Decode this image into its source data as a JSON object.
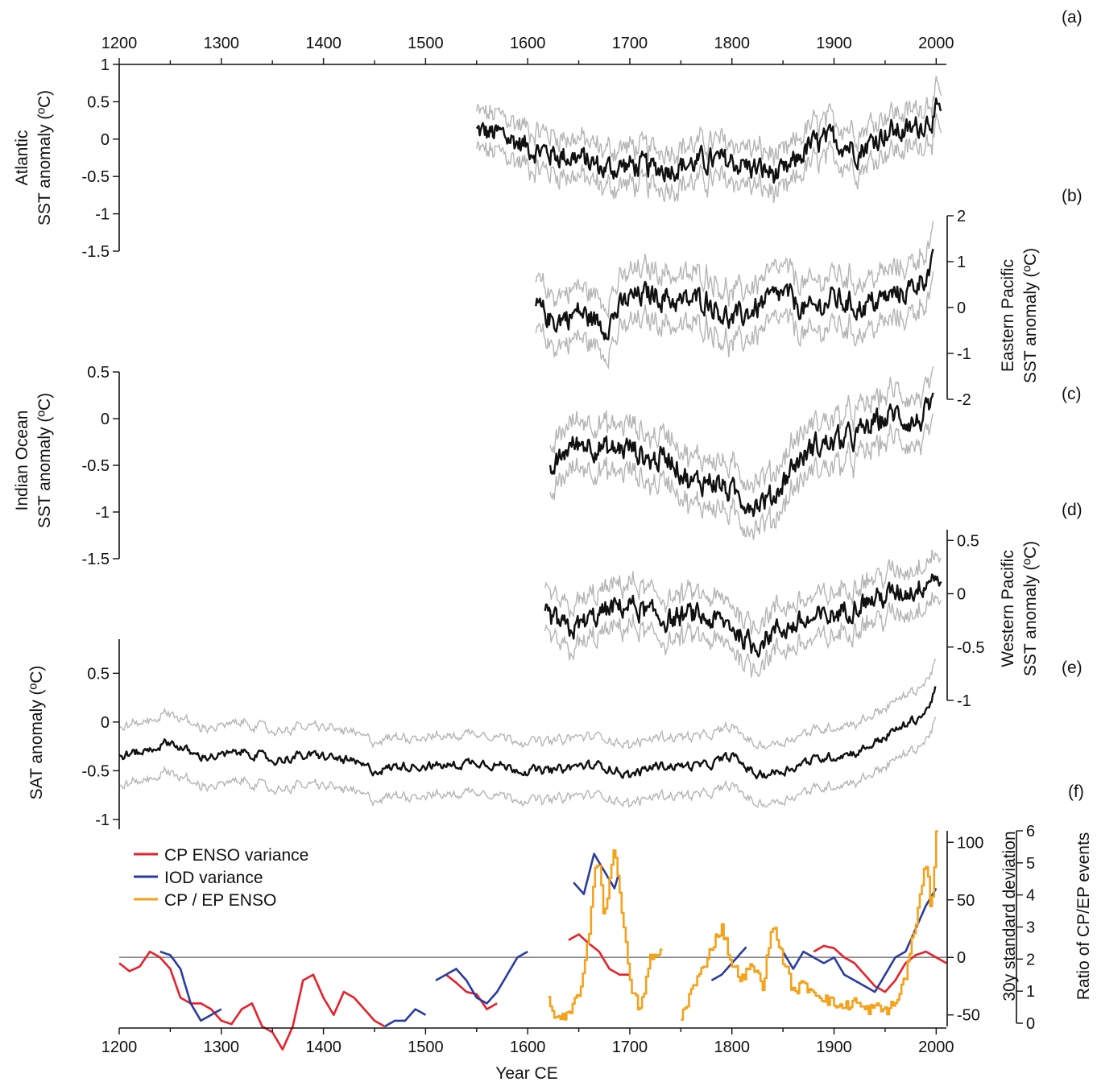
{
  "chart_data": {
    "type": "line",
    "xaxis": {
      "label": "Year CE",
      "range": [
        1200,
        2010
      ],
      "ticks": [
        1200,
        1300,
        1400,
        1500,
        1600,
        1700,
        1800,
        1900,
        2000
      ]
    },
    "panels": [
      {
        "id": "a",
        "label": "(a)",
        "ylabel": [
          "Atlantic",
          "SST anomaly (ºC)"
        ],
        "axis_side": "left",
        "ylim": [
          -1.5,
          1
        ],
        "yticks": [
          "1",
          "0.5",
          "0",
          "-0.5",
          "-1",
          "-1.5"
        ],
        "ytick_values": [
          1,
          0.5,
          0,
          -0.5,
          -1,
          -1.5
        ],
        "series": [
          {
            "style": "black-with-grey-envelope",
            "x_start": 1550,
            "x_end": 2005,
            "x": [
              1550,
              1575,
              1600,
              1625,
              1650,
              1675,
              1700,
              1725,
              1750,
              1775,
              1800,
              1825,
              1850,
              1875,
              1900,
              1925,
              1950,
              1975,
              2000,
              2005
            ],
            "y": [
              0.1,
              0.05,
              -0.1,
              -0.2,
              -0.25,
              -0.4,
              -0.35,
              -0.4,
              -0.35,
              -0.3,
              -0.3,
              -0.4,
              -0.5,
              -0.1,
              0.0,
              -0.15,
              0.1,
              0.1,
              0.35,
              0.3
            ],
            "envelope": 0.25
          }
        ]
      },
      {
        "id": "b",
        "label": "(b)",
        "ylabel": [
          "Eastern Pacific",
          "SST anomaly (ºC)"
        ],
        "axis_side": "right",
        "ylim": [
          -2,
          2
        ],
        "yticks": [
          "2",
          "1",
          "0",
          "-1",
          "-2"
        ],
        "ytick_values": [
          2,
          1,
          0,
          -1,
          -2
        ],
        "series": [
          {
            "style": "black-with-grey-envelope",
            "x_start": 1608,
            "x_end": 1997,
            "x": [
              1608,
              1625,
              1650,
              1675,
              1700,
              1725,
              1750,
              1775,
              1800,
              1825,
              1850,
              1875,
              1900,
              1925,
              1950,
              1975,
              1997
            ],
            "y": [
              0.0,
              -0.3,
              -0.1,
              -0.4,
              0.2,
              0.3,
              0.1,
              0.2,
              -0.3,
              0.0,
              0.3,
              -0.1,
              0.2,
              0.0,
              0.2,
              0.4,
              0.9
            ],
            "envelope": 0.55
          }
        ]
      },
      {
        "id": "c",
        "label": "(c)",
        "ylabel": [
          "Indian Ocean",
          "SST anomaly (ºC)"
        ],
        "axis_side": "left",
        "ylim": [
          -1.5,
          0.5
        ],
        "yticks": [
          "0.5",
          "0",
          "-0.5",
          "-1",
          "-1.5"
        ],
        "ytick_values": [
          0.5,
          0,
          -0.5,
          -1,
          -1.5
        ],
        "series": [
          {
            "style": "black-with-grey-envelope",
            "x_start": 1622,
            "x_end": 1997,
            "x": [
              1622,
              1640,
              1660,
              1680,
              1700,
              1720,
              1740,
              1760,
              1780,
              1800,
              1820,
              1840,
              1860,
              1880,
              1900,
              1920,
              1940,
              1960,
              1980,
              1997
            ],
            "y": [
              -0.6,
              -0.3,
              -0.25,
              -0.35,
              -0.3,
              -0.45,
              -0.4,
              -0.7,
              -0.65,
              -0.8,
              -0.9,
              -0.85,
              -0.5,
              -0.3,
              -0.25,
              -0.2,
              -0.05,
              0.05,
              -0.05,
              0.1
            ],
            "envelope": 0.25
          }
        ]
      },
      {
        "id": "d",
        "label": "(d)",
        "ylabel": [
          "Western Pacific",
          "SST anomaly (ºC)"
        ],
        "axis_side": "right",
        "ylim": [
          -1,
          0.6
        ],
        "yticks": [
          "0.5",
          "0",
          "-0.5",
          "-1"
        ],
        "ytick_values": [
          0.5,
          0,
          -0.5,
          -1
        ],
        "series": [
          {
            "style": "black-with-grey-envelope",
            "x_start": 1617,
            "x_end": 2005,
            "x": [
              1617,
              1640,
              1660,
              1680,
              1700,
              1720,
              1740,
              1760,
              1780,
              1800,
              1820,
              1840,
              1860,
              1880,
              1900,
              1920,
              1940,
              1960,
              1980,
              2000,
              2005
            ],
            "y": [
              -0.2,
              -0.35,
              -0.25,
              -0.15,
              -0.1,
              -0.2,
              -0.25,
              -0.2,
              -0.25,
              -0.3,
              -0.5,
              -0.35,
              -0.3,
              -0.25,
              -0.2,
              -0.1,
              -0.05,
              0.0,
              0.05,
              0.2,
              0.05
            ],
            "envelope": 0.2
          }
        ]
      },
      {
        "id": "e",
        "label": "(e)",
        "ylabel": [
          "SAT anomaly (ºC)"
        ],
        "axis_side": "left",
        "ylim": [
          -1.1,
          0.85
        ],
        "yticks": [
          "0.5",
          "0",
          "-0.5",
          "-1"
        ],
        "ytick_values": [
          0.5,
          0,
          -0.5,
          -1
        ],
        "series": [
          {
            "style": "black-with-grey-envelope",
            "x_start": 1200,
            "x_end": 2000,
            "x": [
              1200,
              1225,
              1250,
              1275,
              1300,
              1325,
              1350,
              1375,
              1400,
              1425,
              1450,
              1475,
              1500,
              1525,
              1550,
              1575,
              1600,
              1625,
              1650,
              1675,
              1700,
              1725,
              1750,
              1775,
              1800,
              1825,
              1850,
              1875,
              1900,
              1925,
              1950,
              1975,
              1990,
              2000
            ],
            "y": [
              -0.35,
              -0.3,
              -0.2,
              -0.35,
              -0.35,
              -0.3,
              -0.4,
              -0.35,
              -0.35,
              -0.4,
              -0.5,
              -0.45,
              -0.45,
              -0.45,
              -0.4,
              -0.45,
              -0.5,
              -0.5,
              -0.45,
              -0.45,
              -0.55,
              -0.45,
              -0.45,
              -0.45,
              -0.35,
              -0.55,
              -0.5,
              -0.4,
              -0.35,
              -0.3,
              -0.15,
              0.0,
              0.1,
              0.35
            ],
            "envelope": 0.3
          }
        ]
      },
      {
        "id": "f",
        "label": "(f)",
        "ylabel": [
          "30y standard deviation"
        ],
        "y2label": [
          "Ratio of CP/EP events"
        ],
        "axis_side": "right",
        "ylim": [
          -60,
          110
        ],
        "yticks": [
          "100",
          "50",
          "0",
          "-50"
        ],
        "ytick_values": [
          100,
          50,
          0,
          -50
        ],
        "y2lim": [
          0,
          6
        ],
        "y2ticks": [
          "0",
          "1",
          "2",
          "3",
          "4",
          "5",
          "6"
        ],
        "y2tick_values": [
          0,
          1,
          2,
          3,
          4,
          5,
          6
        ],
        "reference_line": 0,
        "series": [
          {
            "name": "CP ENSO variance",
            "color": "#e8202a",
            "segments": [
              {
                "x": [
                  1200,
                  1210,
                  1220,
                  1230,
                  1240,
                  1250,
                  1260,
                  1270,
                  1280,
                  1290,
                  1300,
                  1310,
                  1320,
                  1330,
                  1340,
                  1350,
                  1360,
                  1370,
                  1380,
                  1390,
                  1400,
                  1410,
                  1420,
                  1430,
                  1440,
                  1450,
                  1460
                ],
                "y": [
                  -5,
                  -12,
                  -8,
                  5,
                  0,
                  -10,
                  -35,
                  -40,
                  -40,
                  -45,
                  -55,
                  -58,
                  -45,
                  -40,
                  -60,
                  -65,
                  -80,
                  -60,
                  -20,
                  -15,
                  -35,
                  -50,
                  -30,
                  -35,
                  -45,
                  -55,
                  -60
                ]
              },
              {
                "x": [
                  1520,
                  1530,
                  1540,
                  1550,
                  1560,
                  1570
                ],
                "y": [
                  -15,
                  -22,
                  -30,
                  -32,
                  -45,
                  -40
                ]
              },
              {
                "x": [
                  1640,
                  1650,
                  1660,
                  1670,
                  1680,
                  1690,
                  1700
                ],
                "y": [
                  15,
                  20,
                  12,
                  5,
                  -10,
                  -15,
                  -15
                ]
              },
              {
                "x": [
                  1880,
                  1890,
                  1900,
                  1910,
                  1920,
                  1930,
                  1940,
                  1950,
                  1960,
                  1970,
                  1980,
                  1990,
                  2000,
                  2010
                ],
                "y": [
                  5,
                  10,
                  8,
                  0,
                  -5,
                  -15,
                  -25,
                  -30,
                  -20,
                  -5,
                  2,
                  5,
                  0,
                  -5
                ]
              }
            ]
          },
          {
            "name": "IOD variance",
            "color": "#2a3d9e",
            "segments": [
              {
                "x": [
                  1240,
                  1250,
                  1260,
                  1270,
                  1280,
                  1290,
                  1300
                ],
                "y": [
                  5,
                  2,
                  -10,
                  -40,
                  -55,
                  -50,
                  -45
                ]
              },
              {
                "x": [
                  1460,
                  1470,
                  1480,
                  1490,
                  1500
                ],
                "y": [
                  -60,
                  -55,
                  -55,
                  -45,
                  -50
                ]
              },
              {
                "x": [
                  1510,
                  1520,
                  1530,
                  1540,
                  1550,
                  1560,
                  1570,
                  1580,
                  1590,
                  1600
                ],
                "y": [
                  -20,
                  -15,
                  -10,
                  -20,
                  -35,
                  -40,
                  -30,
                  -15,
                  0,
                  5
                ]
              },
              {
                "x": [
                  1645,
                  1655,
                  1665,
                  1675,
                  1685,
                  1690
                ],
                "y": [
                  65,
                  55,
                  90,
                  75,
                  60,
                  75
                ]
              },
              {
                "x": [
                  1780,
                  1790,
                  1800,
                  1815
                ],
                "y": [
                  -20,
                  -15,
                  -5,
                  10
                ]
              },
              {
                "x": [
                  1850,
                  1860,
                  1870,
                  1880,
                  1890,
                  1900,
                  1910,
                  1920,
                  1930,
                  1940,
                  1950,
                  1960,
                  1970,
                  1980,
                  1990,
                  2000
                ],
                "y": [
                  5,
                  -10,
                  5,
                  0,
                  -5,
                  0,
                  -15,
                  -20,
                  -25,
                  -30,
                  -15,
                  0,
                  5,
                  25,
                  45,
                  60
                ]
              }
            ]
          },
          {
            "name": "CP / EP ENSO",
            "color": "#f5a21b",
            "axis": "y2",
            "segments": [
              {
                "x": [
                  1620,
                  1625,
                  1630,
                  1640,
                  1650,
                  1655,
                  1660,
                  1665,
                  1670,
                  1675,
                  1680,
                  1685,
                  1690,
                  1700,
                  1710,
                  1720,
                  1730
                ],
                "y": [
                  0.7,
                  0.3,
                  0.1,
                  0.2,
                  1.0,
                  1.6,
                  2.8,
                  4.8,
                  5.0,
                  3.2,
                  4.6,
                  5.4,
                  4.2,
                  1.2,
                  0.4,
                  2.0,
                  2.2
                ]
              },
              {
                "x": [
                  1750,
                  1760,
                  1770,
                  1780,
                  1790,
                  1800,
                  1810,
                  1820,
                  1830,
                  1840,
                  1850,
                  1860,
                  1870,
                  1880,
                  1890,
                  1900,
                  1910,
                  1920,
                  1930,
                  1940,
                  1950,
                  1960,
                  1970,
                  1980,
                  1990,
                  1995,
                  2000
                ],
                "y": [
                  0.2,
                  1.0,
                  1.6,
                  2.4,
                  3.0,
                  1.8,
                  1.4,
                  1.8,
                  1.2,
                  3.1,
                  2.0,
                  1.0,
                  1.2,
                  1.0,
                  0.8,
                  0.6,
                  0.5,
                  0.7,
                  0.4,
                  0.5,
                  0.4,
                  0.6,
                  1.5,
                  3.2,
                  5.0,
                  3.5,
                  6.0
                ]
              }
            ]
          }
        ],
        "legend": {
          "position": "top-left"
        }
      }
    ]
  }
}
